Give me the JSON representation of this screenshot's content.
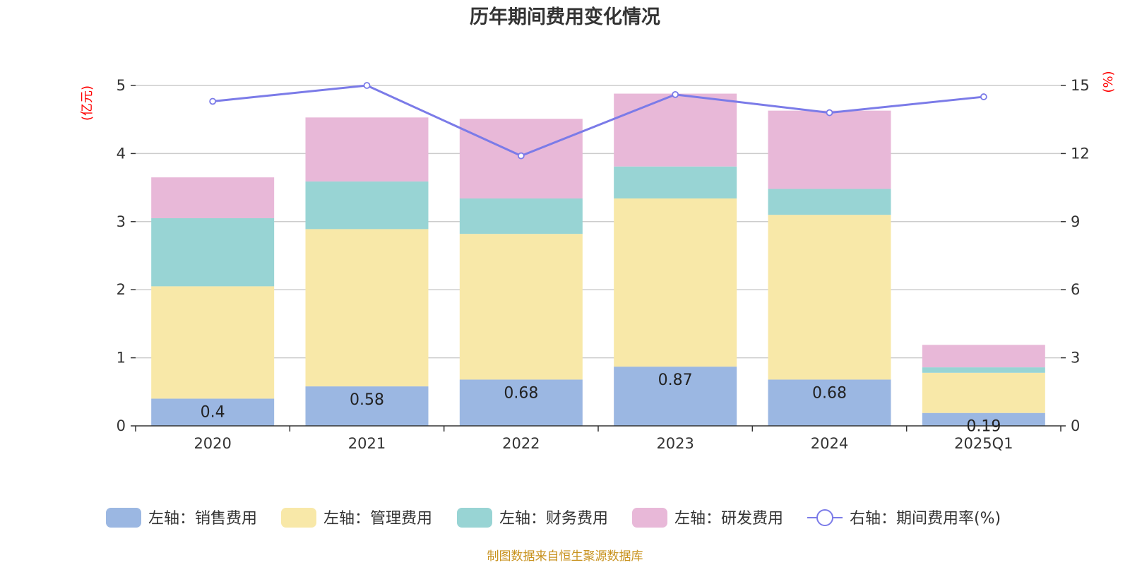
{
  "chart_data": {
    "type": "bar",
    "title": "历年期间费用变化情况",
    "categories": [
      "2020",
      "2021",
      "2022",
      "2023",
      "2024",
      "2025Q1"
    ],
    "series": [
      {
        "name": "左轴：销售费用",
        "type": "bar",
        "axis": "left",
        "color": "#9bb7e2",
        "values": [
          0.4,
          0.58,
          0.68,
          0.87,
          0.68,
          0.19
        ]
      },
      {
        "name": "左轴：管理费用",
        "type": "bar",
        "axis": "left",
        "color": "#f8e8a8",
        "values": [
          1.65,
          2.31,
          2.14,
          2.47,
          2.42,
          0.59
        ]
      },
      {
        "name": "左轴：财务费用",
        "type": "bar",
        "axis": "left",
        "color": "#98d4d4",
        "values": [
          1.0,
          0.7,
          0.52,
          0.47,
          0.38,
          0.08
        ]
      },
      {
        "name": "左轴：研发费用",
        "type": "bar",
        "axis": "left",
        "color": "#e8b8d8",
        "values": [
          0.6,
          0.94,
          1.17,
          1.07,
          1.15,
          0.33
        ]
      },
      {
        "name": "右轴：期间费用率(%)",
        "type": "line",
        "axis": "right",
        "color": "#7b7be8",
        "values": [
          14.3,
          15.0,
          11.9,
          14.6,
          13.8,
          14.5
        ]
      }
    ],
    "data_labels": [
      "0.4",
      "0.58",
      "0.68",
      "0.87",
      "0.68",
      "0.19"
    ],
    "left_axis": {
      "unit": "(亿元)",
      "ylim": [
        0,
        5
      ],
      "ticks": [
        "0",
        "1",
        "2",
        "3",
        "4",
        "5"
      ]
    },
    "right_axis": {
      "unit": "(%)",
      "ylim": [
        0,
        15
      ],
      "ticks": [
        "0",
        "3",
        "6",
        "9",
        "12",
        "15"
      ]
    },
    "stacked": true,
    "grid": true,
    "legend_position": "bottom",
    "source": "制图数据来自恒生聚源数据库"
  }
}
